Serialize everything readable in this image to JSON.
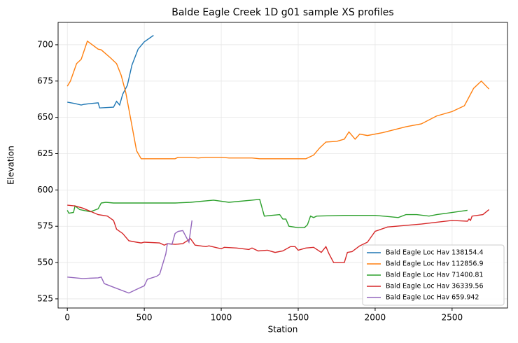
{
  "chart_data": {
    "type": "line",
    "title": "Balde Eagle Creek 1D g01 sample XS profiles",
    "x_label": "Station",
    "y_label": "Elevation",
    "xlim": [
      -60,
      2860
    ],
    "ylim": [
      518.7,
      715.4
    ],
    "xticks": [
      0,
      500,
      1000,
      1500,
      2000,
      2500
    ],
    "yticks": [
      525,
      550,
      575,
      600,
      625,
      650,
      675,
      700
    ],
    "grid": true,
    "legend": "lower right",
    "series": [
      {
        "name": "Bald Eagle Loc Hav 138154.4",
        "color": "#1f77b4",
        "x": [
          0,
          50,
          90,
          110,
          150,
          200,
          210,
          300,
          320,
          340,
          360,
          390,
          420,
          460,
          500,
          560
        ],
        "values": [
          660.5,
          659.5,
          658.5,
          659,
          659.5,
          660,
          656.5,
          657,
          661,
          658.5,
          666,
          672,
          686,
          697,
          702,
          706.5
        ]
      },
      {
        "name": "Bald Eagle Loc Hav 112856.9",
        "color": "#ff7f0e",
        "x": [
          0,
          20,
          60,
          90,
          130,
          200,
          220,
          280,
          320,
          350,
          380,
          410,
          450,
          480,
          700,
          720,
          800,
          850,
          900,
          1000,
          1050,
          1200,
          1250,
          1500,
          1550,
          1600,
          1640,
          1680,
          1750,
          1800,
          1830,
          1870,
          1900,
          1950,
          2050,
          2200,
          2300,
          2400,
          2500,
          2580,
          2640,
          2690,
          2740
        ],
        "values": [
          671.5,
          675,
          687,
          690,
          702.5,
          697,
          696.5,
          691,
          687,
          679,
          667,
          650,
          627,
          621.5,
          621.5,
          622.5,
          622.5,
          622,
          622.5,
          622.5,
          622,
          622,
          621.5,
          621.5,
          621.5,
          624,
          629,
          633,
          633.5,
          635,
          640,
          635,
          638.5,
          637.5,
          639.5,
          643.5,
          645.5,
          651,
          654,
          658,
          670,
          675,
          669.5
        ]
      },
      {
        "name": "Bald Eagle Loc Hav 71400.81",
        "color": "#2ca02c",
        "x": [
          0,
          10,
          40,
          50,
          80,
          150,
          200,
          220,
          250,
          300,
          700,
          800,
          950,
          1050,
          1200,
          1250,
          1280,
          1380,
          1400,
          1420,
          1440,
          1500,
          1540,
          1560,
          1580,
          1600,
          1620,
          1800,
          1900,
          2000,
          2100,
          2150,
          2200,
          2270,
          2350,
          2400,
          2600
        ],
        "values": [
          586,
          584,
          584.5,
          589,
          586.5,
          585,
          587,
          591,
          591.5,
          591,
          591,
          591.5,
          593,
          591.5,
          593,
          593.5,
          582,
          583,
          580,
          580,
          575,
          574,
          574,
          576,
          582,
          581,
          582,
          582.5,
          582.5,
          582.5,
          581.5,
          581,
          583,
          583,
          582,
          583,
          586
        ]
      },
      {
        "name": "Bald Eagle Loc Hav 36339.56",
        "color": "#d62728",
        "x": [
          0,
          50,
          100,
          200,
          260,
          300,
          320,
          360,
          400,
          450,
          480,
          500,
          600,
          630,
          650,
          700,
          750,
          800,
          830,
          900,
          920,
          960,
          1000,
          1020,
          1100,
          1180,
          1200,
          1240,
          1300,
          1350,
          1400,
          1450,
          1480,
          1500,
          1550,
          1600,
          1650,
          1680,
          1700,
          1730,
          1800,
          1820,
          1850,
          1900,
          1950,
          2000,
          2080,
          2300,
          2500,
          2600,
          2610,
          2620,
          2630,
          2700,
          2740
        ],
        "values": [
          589.5,
          589,
          587.5,
          583,
          582,
          579,
          573,
          570,
          565,
          564,
          563.5,
          564,
          563.5,
          562,
          563,
          562.5,
          563,
          566.5,
          562,
          561,
          561.5,
          560.5,
          559.5,
          560.5,
          560,
          559,
          560,
          558,
          558.5,
          557,
          558,
          561,
          561,
          558.5,
          560,
          560.5,
          557,
          561,
          556,
          550,
          550,
          557,
          557.5,
          561.5,
          564,
          571.5,
          574.5,
          576.5,
          579,
          578.5,
          580,
          579,
          582,
          583,
          586.5
        ]
      },
      {
        "name": "Bald Eagle Loc Hav 659.942",
        "color": "#9467bd",
        "x": [
          0,
          100,
          200,
          220,
          240,
          300,
          400,
          450,
          500,
          520,
          580,
          600,
          640,
          650,
          680,
          700,
          720,
          750,
          790,
          810
        ],
        "values": [
          540,
          539,
          539.5,
          540,
          535.5,
          533,
          529,
          531.5,
          534,
          538.5,
          540.5,
          542,
          556,
          563,
          562.5,
          570,
          571.5,
          572,
          564,
          579
        ]
      }
    ]
  }
}
